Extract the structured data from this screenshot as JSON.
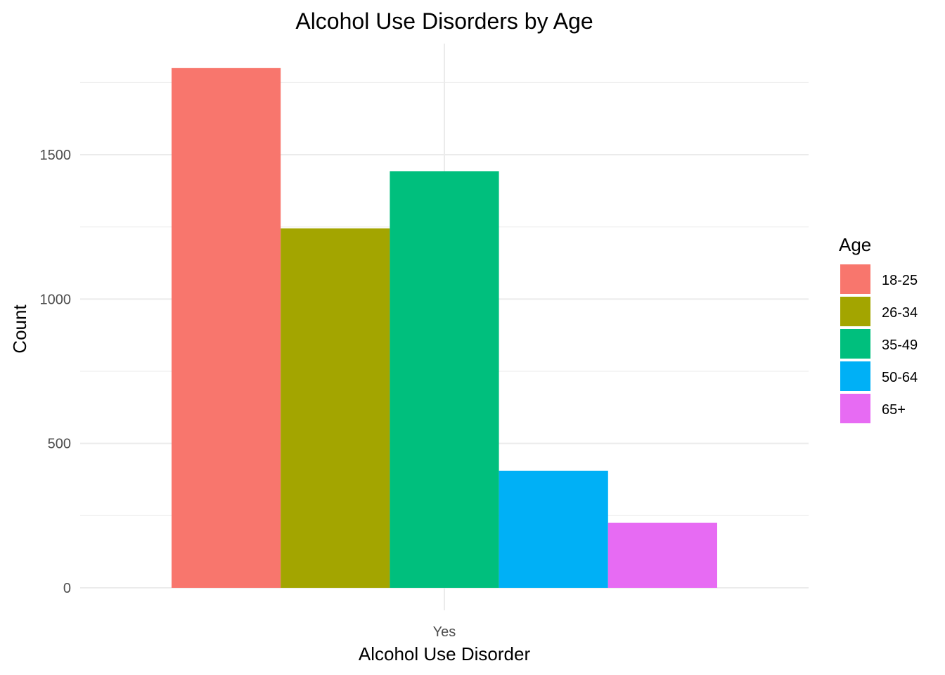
{
  "chart_data": {
    "type": "bar",
    "title": "Alcohol Use Disorders by Age",
    "xlabel": "Alcohol Use Disorder",
    "ylabel": "Count",
    "categories": [
      "Yes"
    ],
    "series": [
      {
        "name": "18-25",
        "values": [
          1800
        ],
        "color": "#F8766D"
      },
      {
        "name": "26-34",
        "values": [
          1245
        ],
        "color": "#A3A500"
      },
      {
        "name": "35-49",
        "values": [
          1443
        ],
        "color": "#00BF7D"
      },
      {
        "name": "50-64",
        "values": [
          405
        ],
        "color": "#00B0F6"
      },
      {
        "name": "65+",
        "values": [
          225
        ],
        "color": "#E76BF3"
      }
    ],
    "ylim": [
      0,
      1900
    ],
    "yticks": [
      0,
      500,
      1000,
      1500
    ],
    "yticks_labels": [
      "0",
      "500",
      "1000",
      "1500"
    ],
    "minor_yticks": [
      250,
      750,
      1250,
      1750
    ],
    "legend": {
      "title": "Age",
      "position": "right"
    },
    "grid": true
  }
}
